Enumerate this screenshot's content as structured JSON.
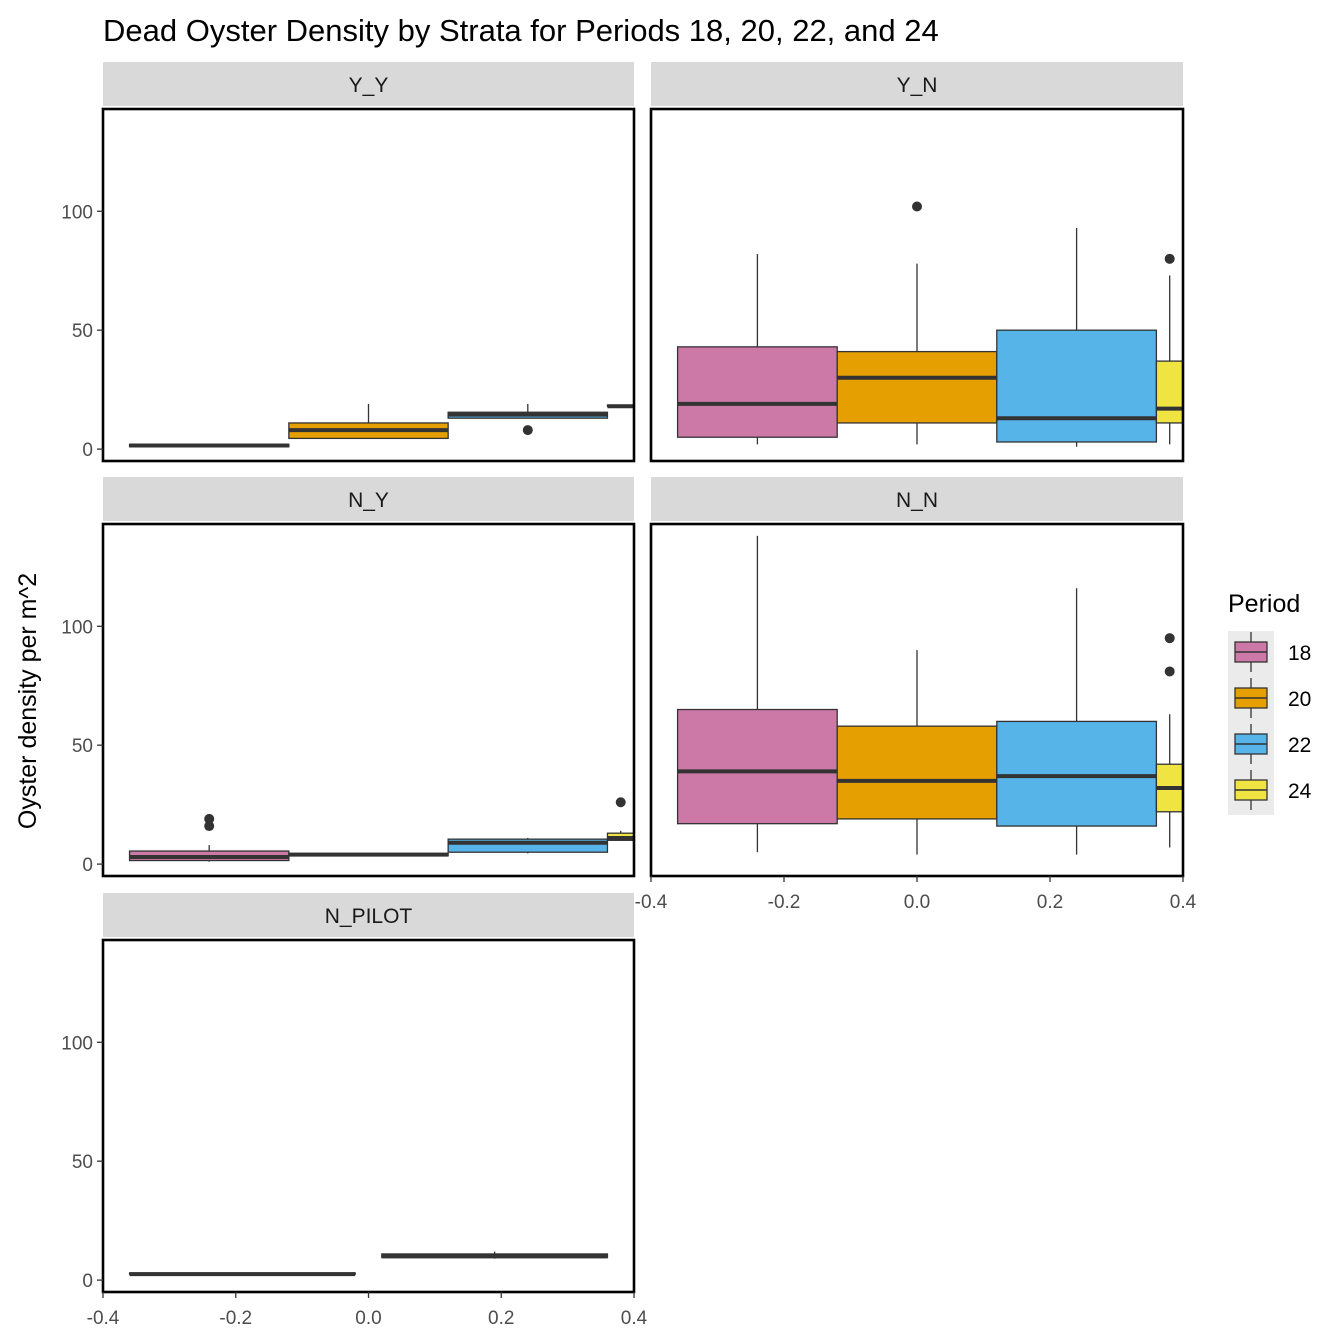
{
  "chart_data": {
    "type": "boxplot",
    "title": "Dead Oyster Density by Strata for Periods 18, 20, 22, and 24",
    "ylabel": "Oyster density per m^2",
    "xlabel": "",
    "ylim": [
      -5,
      143
    ],
    "xlim": [
      -0.4,
      0.4
    ],
    "y_ticks": [
      0,
      50,
      100
    ],
    "x_ticks": [
      -0.4,
      -0.2,
      0.0,
      0.2,
      0.4
    ],
    "x_tick_labels": [
      "-0.4",
      "-0.2",
      "0.0",
      "0.2",
      "0.4"
    ],
    "grid": false,
    "legend": {
      "title": "Period",
      "position": "right",
      "entries": [
        {
          "label": "18",
          "color": "#CC79A7"
        },
        {
          "label": "20",
          "color": "#E69F00"
        },
        {
          "label": "22",
          "color": "#56B4E9"
        },
        {
          "label": "24",
          "color": "#F0E442"
        }
      ]
    },
    "panels": [
      {
        "strip": "Y_Y",
        "boxes": [
          {
            "period": "18",
            "x_range": [
              -0.36,
              -0.12
            ],
            "q1": 1,
            "median": 1.5,
            "q3": 2,
            "whisker_low": 1,
            "whisker_high": 2,
            "outliers": []
          },
          {
            "period": "20",
            "x_range": [
              -0.12,
              0.12
            ],
            "q1": 4.5,
            "median": 8,
            "q3": 11,
            "whisker_low": 4.5,
            "whisker_high": 19,
            "outliers": []
          },
          {
            "period": "22",
            "x_range": [
              0.12,
              0.36
            ],
            "q1": 13,
            "median": 14.5,
            "q3": 15.5,
            "whisker_low": 13,
            "whisker_high": 19,
            "outliers": [
              8
            ]
          },
          {
            "period": "24",
            "x_range": [
              0.36,
              0.6
            ],
            "q1": 18,
            "median": 18,
            "q3": 18.5,
            "whisker_low": 18,
            "whisker_high": 18.5,
            "outliers": []
          }
        ]
      },
      {
        "strip": "Y_N",
        "boxes": [
          {
            "period": "18",
            "x_range": [
              -0.36,
              -0.12
            ],
            "q1": 5,
            "median": 19,
            "q3": 43,
            "whisker_low": 2,
            "whisker_high": 82,
            "outliers": []
          },
          {
            "period": "20",
            "x_range": [
              -0.12,
              0.12
            ],
            "q1": 11,
            "median": 30,
            "q3": 41,
            "whisker_low": 2,
            "whisker_high": 78,
            "outliers": [
              102
            ]
          },
          {
            "period": "22",
            "x_range": [
              0.12,
              0.36
            ],
            "q1": 3,
            "median": 13,
            "q3": 50,
            "whisker_low": 1,
            "whisker_high": 93,
            "outliers": []
          },
          {
            "period": "24",
            "x_range": [
              0.36,
              0.6
            ],
            "q1": 11,
            "median": 17,
            "q3": 37,
            "whisker_low": 2,
            "whisker_high": 73,
            "outliers": [
              80
            ]
          }
        ]
      },
      {
        "strip": "N_Y",
        "boxes": [
          {
            "period": "18",
            "x_range": [
              -0.36,
              -0.12
            ],
            "q1": 1.5,
            "median": 3,
            "q3": 5.5,
            "whisker_low": 1,
            "whisker_high": 8,
            "outliers": [
              16,
              19
            ]
          },
          {
            "period": "20",
            "x_range": [
              -0.12,
              0.12
            ],
            "q1": 3.5,
            "median": 4,
            "q3": 4.5,
            "whisker_low": 3.5,
            "whisker_high": 4.5,
            "outliers": []
          },
          {
            "period": "22",
            "x_range": [
              0.12,
              0.36
            ],
            "q1": 5,
            "median": 9,
            "q3": 10.5,
            "whisker_low": 4.5,
            "whisker_high": 11,
            "outliers": []
          },
          {
            "period": "24",
            "x_range": [
              0.36,
              0.6
            ],
            "q1": 10,
            "median": 11,
            "q3": 13,
            "whisker_low": 10,
            "whisker_high": 14,
            "outliers": [
              26
            ]
          }
        ]
      },
      {
        "strip": "N_N",
        "boxes": [
          {
            "period": "18",
            "x_range": [
              -0.36,
              -0.12
            ],
            "q1": 17,
            "median": 39,
            "q3": 65,
            "whisker_low": 5,
            "whisker_high": 138,
            "outliers": []
          },
          {
            "period": "20",
            "x_range": [
              -0.12,
              0.12
            ],
            "q1": 19,
            "median": 35,
            "q3": 58,
            "whisker_low": 4,
            "whisker_high": 90,
            "outliers": []
          },
          {
            "period": "22",
            "x_range": [
              0.12,
              0.36
            ],
            "q1": 16,
            "median": 37,
            "q3": 60,
            "whisker_low": 4,
            "whisker_high": 116,
            "outliers": []
          },
          {
            "period": "24",
            "x_range": [
              0.36,
              0.6
            ],
            "q1": 22,
            "median": 32,
            "q3": 42,
            "whisker_low": 7,
            "whisker_high": 63,
            "outliers": [
              81,
              95
            ]
          }
        ]
      },
      {
        "strip": "N_PILOT",
        "boxes": [
          {
            "period": "18",
            "x_range": [
              -0.36,
              -0.02
            ],
            "q1": 2.5,
            "median": 2.5,
            "q3": 3,
            "whisker_low": 2.5,
            "whisker_high": 3,
            "outliers": []
          },
          {
            "period": "22",
            "x_range": [
              0.02,
              0.36
            ],
            "q1": 9.5,
            "median": 10,
            "q3": 11,
            "whisker_low": 9,
            "whisker_high": 12,
            "outliers": []
          }
        ]
      }
    ]
  }
}
